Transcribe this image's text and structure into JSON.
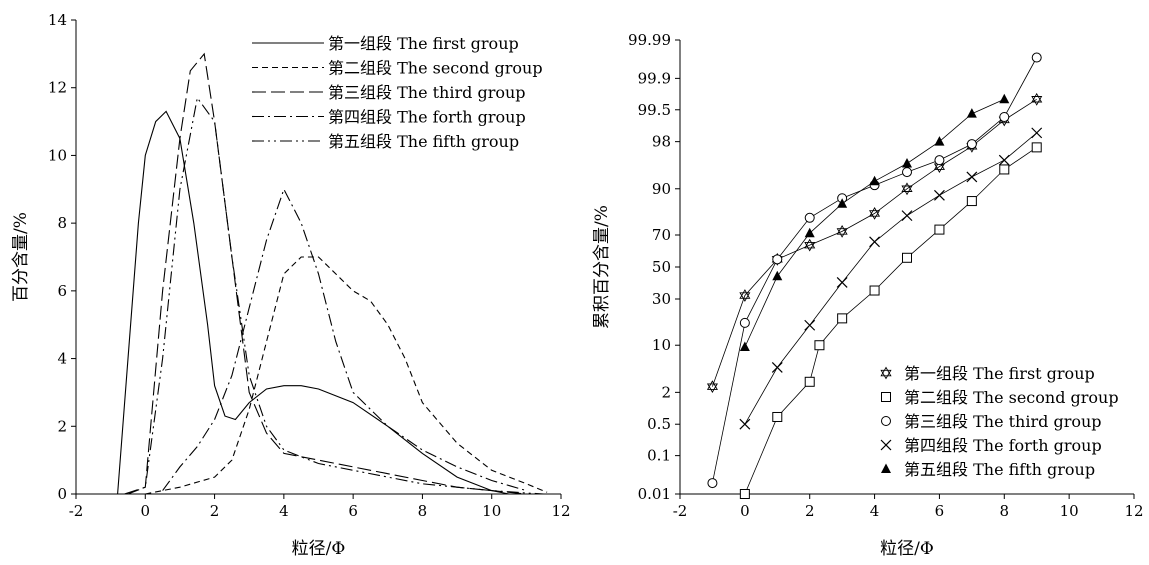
{
  "chart_data": [
    {
      "type": "line",
      "xlabel": "粒径/Φ",
      "ylabel": "百分含量/%",
      "xlim": [
        -2,
        12
      ],
      "ylim": [
        0,
        14
      ],
      "xticks": [
        -2,
        0,
        2,
        4,
        6,
        8,
        10,
        12
      ],
      "yticks": [
        0,
        2,
        4,
        6,
        8,
        10,
        12,
        14
      ],
      "legend": "top-right",
      "grid": false,
      "series": [
        {
          "name": "第一组段 The  first  group",
          "style": "solid",
          "x": [
            -1,
            -0.8,
            -0.5,
            -0.2,
            0,
            0.3,
            0.6,
            1.0,
            1.4,
            1.8,
            2.0,
            2.3,
            2.6,
            3.0,
            3.5,
            4.0,
            4.5,
            5.0,
            6.0,
            7.0,
            8.0,
            9.0,
            10.0,
            10.5
          ],
          "y": [
            0,
            0,
            4,
            8,
            10,
            11,
            11.3,
            10.5,
            8,
            5,
            3.2,
            2.3,
            2.2,
            2.7,
            3.1,
            3.2,
            3.2,
            3.1,
            2.7,
            2.0,
            1.2,
            0.5,
            0.1,
            0
          ]
        },
        {
          "name": "第二组段 The  second group",
          "style": "dashed",
          "x": [
            0,
            1,
            2,
            2.5,
            3,
            3.5,
            4,
            4.5,
            5,
            5.5,
            6,
            6.5,
            7,
            7.5,
            8,
            9,
            10,
            11,
            11.6
          ],
          "y": [
            0,
            0.2,
            0.5,
            1.0,
            2.5,
            4.5,
            6.5,
            7.0,
            7.0,
            6.5,
            6.0,
            5.7,
            5.0,
            4.0,
            2.7,
            1.5,
            0.7,
            0.3,
            0.05
          ]
        },
        {
          "name": "第三组段 The  third group",
          "style": "long-dash",
          "x": [
            -0.6,
            0,
            0.5,
            1,
            1.3,
            1.7,
            2,
            2.5,
            3,
            3.5,
            4,
            5,
            6,
            7,
            8,
            9,
            10,
            11
          ],
          "y": [
            0,
            0.2,
            6,
            10.5,
            12.5,
            13,
            11,
            7,
            3,
            1.8,
            1.2,
            1.0,
            0.8,
            0.6,
            0.4,
            0.2,
            0.1,
            0
          ]
        },
        {
          "name": "第四组段 The  forth  group",
          "style": "dash-dot",
          "x": [
            0.5,
            1,
            1.5,
            2,
            2.5,
            3,
            3.5,
            4,
            4.5,
            5,
            5.5,
            6,
            7,
            8,
            9,
            10,
            11
          ],
          "y": [
            0.1,
            0.8,
            1.4,
            2.2,
            3.5,
            5.5,
            7.5,
            9.0,
            8.0,
            6.5,
            4.5,
            3.0,
            2.0,
            1.3,
            0.8,
            0.4,
            0.1
          ]
        },
        {
          "name": "第五组段 The  fifth  group",
          "style": "dash-dot-dot",
          "x": [
            -0.5,
            0,
            0.5,
            1,
            1.5,
            2,
            2.5,
            3,
            3.5,
            4,
            4.5,
            5,
            6,
            7,
            8,
            9,
            10,
            11,
            11.5
          ],
          "y": [
            0,
            0.2,
            4,
            9,
            11.7,
            11,
            7,
            3.5,
            2.0,
            1.3,
            1.1,
            0.9,
            0.7,
            0.5,
            0.3,
            0.2,
            0.1,
            0.03,
            0
          ]
        }
      ]
    },
    {
      "type": "scatter",
      "xlabel": "粒径/Φ",
      "ylabel": "累积百分含量/%",
      "xlim": [
        -2,
        12
      ],
      "xticks": [
        -2,
        0,
        2,
        4,
        6,
        8,
        10,
        12
      ],
      "yscale": "probability",
      "yticks": [
        "0.01",
        "0.1",
        "0.5",
        "2",
        "10",
        "30",
        "50",
        "70",
        "90",
        "98",
        "99.5",
        "99.9",
        "99.99"
      ],
      "legend": "bottom-right",
      "grid": false,
      "series": [
        {
          "name": "第一组段 The first group",
          "marker": "star",
          "x": [
            -1,
            0,
            1,
            2,
            3,
            4,
            5,
            6,
            7,
            8,
            9
          ],
          "y": [
            2.5,
            32,
            55,
            64,
            72,
            81,
            90,
            95,
            97.6,
            99.2,
            99.7
          ]
        },
        {
          "name": "第二组段 The second group",
          "marker": "square",
          "x": [
            0,
            1,
            2,
            2.3,
            3,
            4,
            5,
            6,
            7,
            8,
            9
          ],
          "y": [
            0.01,
            0.7,
            3.0,
            10,
            20,
            35,
            56,
            73,
            86,
            94.5,
            97.5
          ]
        },
        {
          "name": "第三组段 The third group",
          "marker": "circle",
          "x": [
            -1,
            0,
            1,
            2,
            3,
            4,
            5,
            6,
            7,
            8,
            9
          ],
          "y": [
            0.02,
            18,
            55,
            79,
            87,
            91,
            94,
            96,
            97.8,
            99.3,
            99.97
          ]
        },
        {
          "name": "第四组段 The forth group",
          "marker": "x",
          "x": [
            0,
            1,
            2,
            3,
            4,
            5,
            6,
            7,
            8,
            9
          ],
          "y": [
            0.5,
            5,
            17,
            40,
            66,
            80,
            88,
            93,
            96,
            98.6
          ]
        },
        {
          "name": "第五组段 The fifth group",
          "marker": "triangle",
          "x": [
            0,
            1,
            2,
            3,
            4,
            5,
            6,
            7,
            8
          ],
          "y": [
            9.5,
            44,
            71,
            85,
            92,
            95.5,
            98,
            99.4,
            99.7
          ]
        }
      ]
    }
  ]
}
